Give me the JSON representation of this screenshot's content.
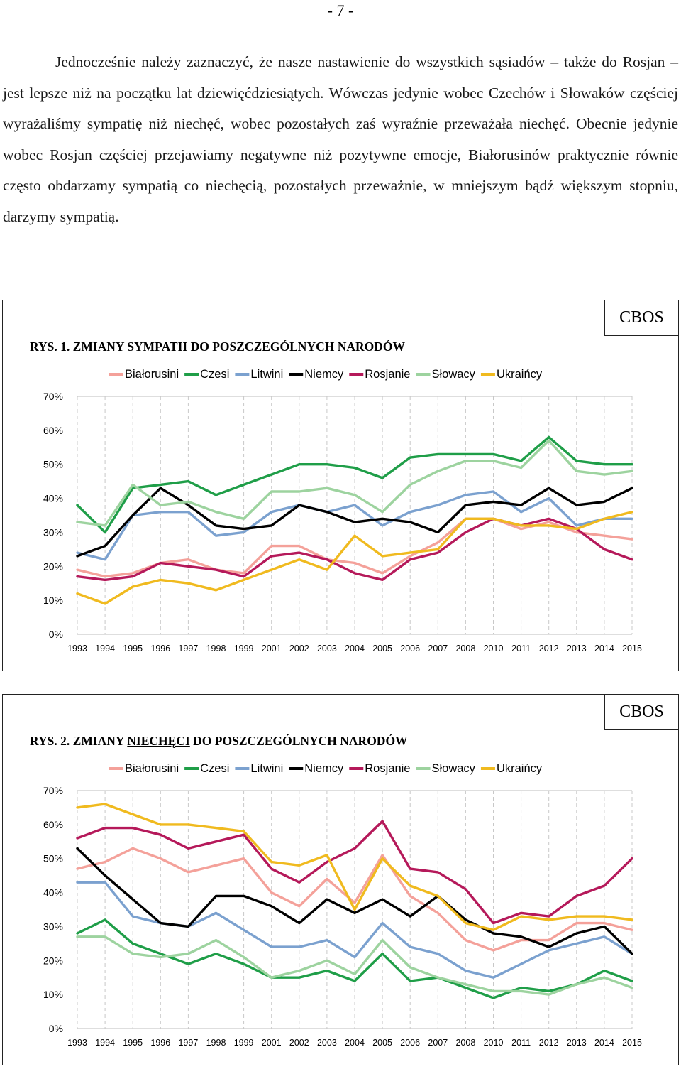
{
  "page": {
    "number": "- 7 -"
  },
  "paragraph": "Jednocześnie należy zaznaczyć, że nasze nastawienie do wszystkich sąsiadów – także do Rosjan – jest lepsze niż na początku lat dziewięćdziesiątych. Wówczas jedynie wobec Czechów i Słowaków częściej wyrażaliśmy sympatię niż niechęć, wobec pozostałych zaś wyraźnie przeważała niechęć. Obecnie jedynie wobec Rosjan częściej przejawiamy negatywne niż pozytywne emocje, Białorusinów praktycznie równie często obdarzamy sympatią co niechęcią, pozostałych przeważnie, w mniejszym bądź większym stopniu, darzymy sympatią.",
  "figures": [
    {
      "source": "CBOS",
      "title_prefix": "RYS. 1. ",
      "title_pre": "ZMIANY ",
      "title_underlined": "SYMPATII",
      "title_post": " DO POSZCZEGÓLNYCH NARODÓW"
    },
    {
      "source": "CBOS",
      "title_prefix": "RYS. 2. ",
      "title_pre": "ZMIANY ",
      "title_underlined": "NIECHĘCI",
      "title_post": " DO POSZCZEGÓLNYCH NARODÓW"
    }
  ],
  "chart_data": [
    {
      "type": "line",
      "title": "RYS. 1. ZMIANY SYMPATII DO POSZCZEGÓLNYCH NARODÓW",
      "categories": [
        "1993",
        "1994",
        "1995",
        "1996",
        "1997",
        "1998",
        "1999",
        "2001",
        "2002",
        "2003",
        "2004",
        "2005",
        "2006",
        "2007",
        "2008",
        "2010",
        "2011",
        "2012",
        "2013",
        "2014",
        "2015"
      ],
      "y_ticks": [
        "0%",
        "10%",
        "20%",
        "30%",
        "40%",
        "50%",
        "60%",
        "70%"
      ],
      "ylim": [
        0,
        70
      ],
      "grid": "vertical dashed",
      "legend": "top",
      "series": [
        {
          "name": "Białorusini",
          "color": "#f4a19a",
          "values": [
            19,
            17,
            18,
            21,
            22,
            19,
            18,
            26,
            26,
            22,
            21,
            18,
            23,
            27,
            34,
            34,
            31,
            33,
            30,
            29,
            28
          ]
        },
        {
          "name": "Czesi",
          "color": "#1f9e48",
          "values": [
            38,
            30,
            43,
            44,
            45,
            41,
            44,
            47,
            50,
            50,
            49,
            46,
            52,
            53,
            53,
            53,
            51,
            58,
            51,
            50,
            50
          ]
        },
        {
          "name": "Litwini",
          "color": "#7ba1cf",
          "values": [
            24,
            22,
            35,
            36,
            36,
            29,
            30,
            36,
            38,
            36,
            38,
            32,
            36,
            38,
            41,
            42,
            36,
            40,
            32,
            34,
            34
          ]
        },
        {
          "name": "Niemcy",
          "color": "#000000",
          "values": [
            23,
            26,
            35,
            43,
            38,
            32,
            31,
            32,
            38,
            36,
            33,
            34,
            33,
            30,
            38,
            39,
            38,
            43,
            38,
            39,
            43
          ]
        },
        {
          "name": "Rosjanie",
          "color": "#b5195a",
          "values": [
            17,
            16,
            17,
            21,
            20,
            19,
            17,
            23,
            24,
            22,
            18,
            16,
            22,
            24,
            30,
            34,
            32,
            34,
            31,
            25,
            22
          ]
        },
        {
          "name": "Słowacy",
          "color": "#9dd39f",
          "values": [
            33,
            32,
            44,
            38,
            39,
            36,
            34,
            42,
            42,
            43,
            41,
            36,
            44,
            48,
            51,
            51,
            49,
            57,
            48,
            47,
            48
          ]
        },
        {
          "name": "Ukraińcy",
          "color": "#f0ba1f",
          "values": [
            12,
            9,
            14,
            16,
            15,
            13,
            16,
            19,
            22,
            19,
            29,
            23,
            24,
            25,
            34,
            34,
            32,
            32,
            31,
            34,
            36
          ]
        }
      ]
    },
    {
      "type": "line",
      "title": "RYS. 2. ZMIANY NIECHĘCI DO POSZCZEGÓLNYCH NARODÓW",
      "categories": [
        "1993",
        "1994",
        "1995",
        "1996",
        "1997",
        "1998",
        "1999",
        "2001",
        "2002",
        "2003",
        "2004",
        "2005",
        "2006",
        "2007",
        "2008",
        "2010",
        "2011",
        "2012",
        "2013",
        "2014",
        "2015"
      ],
      "y_ticks": [
        "0%",
        "10%",
        "20%",
        "30%",
        "40%",
        "50%",
        "60%",
        "70%"
      ],
      "ylim": [
        0,
        70
      ],
      "grid": "vertical dashed",
      "legend": "top",
      "series": [
        {
          "name": "Białorusini",
          "color": "#f4a19a",
          "values": [
            47,
            49,
            53,
            50,
            46,
            48,
            50,
            40,
            36,
            44,
            37,
            51,
            39,
            34,
            26,
            23,
            26,
            26,
            31,
            31,
            29
          ]
        },
        {
          "name": "Czesi",
          "color": "#1f9e48",
          "values": [
            28,
            32,
            25,
            22,
            19,
            22,
            19,
            15,
            15,
            17,
            14,
            22,
            14,
            15,
            12,
            9,
            12,
            11,
            13,
            17,
            14
          ]
        },
        {
          "name": "Litwini",
          "color": "#7ba1cf",
          "values": [
            43,
            43,
            33,
            31,
            30,
            34,
            29,
            24,
            24,
            26,
            21,
            31,
            24,
            22,
            17,
            15,
            19,
            23,
            25,
            27,
            22
          ]
        },
        {
          "name": "Niemcy",
          "color": "#000000",
          "values": [
            53,
            45,
            38,
            31,
            30,
            39,
            39,
            36,
            31,
            38,
            34,
            38,
            33,
            39,
            32,
            28,
            27,
            24,
            28,
            30,
            22
          ]
        },
        {
          "name": "Rosjanie",
          "color": "#b5195a",
          "values": [
            56,
            59,
            59,
            57,
            53,
            55,
            57,
            47,
            43,
            49,
            53,
            61,
            47,
            46,
            41,
            31,
            34,
            33,
            39,
            42,
            50
          ]
        },
        {
          "name": "Słowacy",
          "color": "#9dd39f",
          "values": [
            27,
            27,
            22,
            21,
            22,
            26,
            21,
            15,
            17,
            20,
            16,
            26,
            18,
            15,
            13,
            11,
            11,
            10,
            13,
            15,
            12
          ]
        },
        {
          "name": "Ukraińcy",
          "color": "#f0ba1f",
          "values": [
            65,
            66,
            63,
            60,
            60,
            59,
            58,
            49,
            48,
            51,
            35,
            50,
            42,
            39,
            31,
            29,
            33,
            32,
            33,
            33,
            32
          ]
        }
      ]
    }
  ]
}
